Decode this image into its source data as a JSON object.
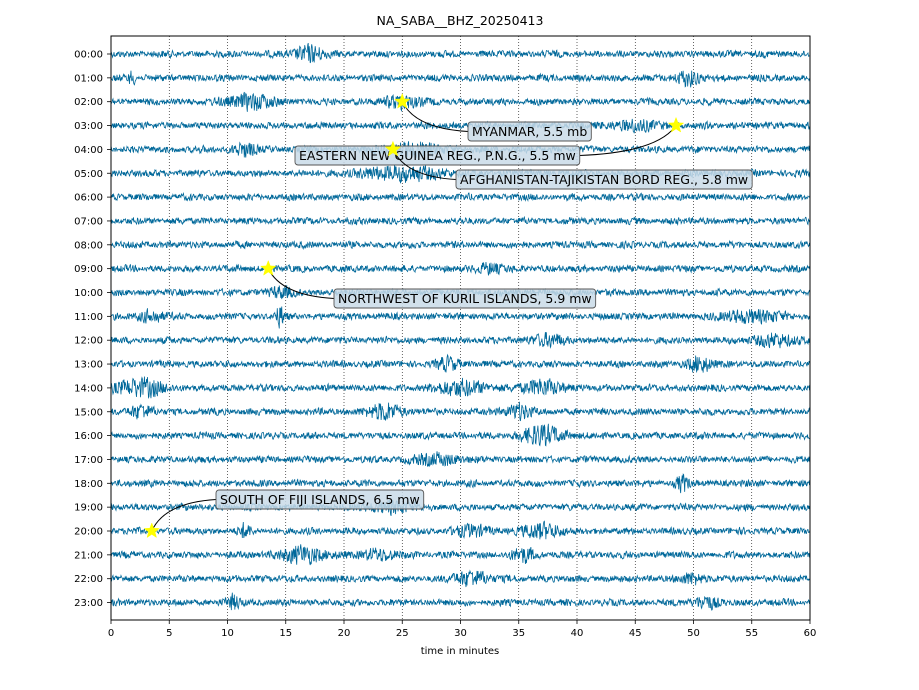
{
  "chart_data": {
    "type": "line",
    "title": "NA_SABA__BHZ_20250413",
    "xlabel": "time in minutes",
    "ylabel": "",
    "xlim": [
      0,
      60
    ],
    "xticks": [
      0,
      5,
      10,
      15,
      20,
      25,
      30,
      35,
      40,
      45,
      50,
      55,
      60
    ],
    "rows": [
      "00:00",
      "01:00",
      "02:00",
      "03:00",
      "04:00",
      "05:00",
      "06:00",
      "07:00",
      "08:00",
      "09:00",
      "10:00",
      "11:00",
      "12:00",
      "13:00",
      "14:00",
      "15:00",
      "16:00",
      "17:00",
      "18:00",
      "19:00",
      "20:00",
      "21:00",
      "22:00",
      "23:00"
    ],
    "grid": "vertical-dotted",
    "trace_color": "#00689a",
    "marker_color": "#ffff00",
    "events": [
      {
        "label": "MYANMAR, 5.5 mb",
        "row": 2,
        "minute": 25.0
      },
      {
        "label": "EASTERN NEW GUINEA REG., P.N.G., 5.5 mw",
        "row": 3,
        "minute": 48.5
      },
      {
        "label": "AFGHANISTAN-TAJIKISTAN BORD REG., 5.8 mw",
        "row": 4,
        "minute": 24.2
      },
      {
        "label": "NORTHWEST OF KURIL ISLANDS, 5.9 mw",
        "row": 9,
        "minute": 13.5
      },
      {
        "label": "SOUTH OF FIJI ISLANDS, 6.5 mw",
        "row": 20,
        "minute": 3.5
      }
    ],
    "bursts": [
      [
        {
          "m": 17,
          "a": 1.6,
          "w": 1.2
        }
      ],
      [
        {
          "m": 1.8,
          "a": 1.3,
          "w": 0.3
        },
        {
          "m": 49.5,
          "a": 1.4,
          "w": 1.0
        }
      ],
      [
        {
          "m": 12,
          "a": 1.4,
          "w": 2.0
        },
        {
          "m": 25,
          "a": 1.2,
          "w": 1.5
        }
      ],
      [
        {
          "m": 45,
          "a": 0.9,
          "w": 2.0
        }
      ],
      [
        {
          "m": 11.5,
          "a": 1.2,
          "w": 1.0
        },
        {
          "m": 26,
          "a": 1.2,
          "w": 2.5
        }
      ],
      [
        {
          "m": 25,
          "a": 1.3,
          "w": 3.5
        }
      ],
      [],
      [],
      [],
      [
        {
          "m": 32.5,
          "a": 1.0,
          "w": 1.0
        }
      ],
      [
        {
          "m": 14.5,
          "a": 1.0,
          "w": 1.0
        }
      ],
      [
        {
          "m": 14.5,
          "a": 1.8,
          "w": 0.4
        },
        {
          "m": 3.5,
          "a": 1.1,
          "w": 1.0
        },
        {
          "m": 55,
          "a": 1.1,
          "w": 2.5
        }
      ],
      [
        {
          "m": 37.5,
          "a": 1.0,
          "w": 1.5
        },
        {
          "m": 57,
          "a": 1.0,
          "w": 2.0
        }
      ],
      [
        {
          "m": 29,
          "a": 1.1,
          "w": 1.0
        },
        {
          "m": 50.5,
          "a": 1.5,
          "w": 1.0
        }
      ],
      [
        {
          "m": 2.5,
          "a": 1.7,
          "w": 2.0
        },
        {
          "m": 30,
          "a": 1.5,
          "w": 2.0
        },
        {
          "m": 37,
          "a": 1.3,
          "w": 2.0
        }
      ],
      [
        {
          "m": 23.5,
          "a": 1.5,
          "w": 1.5
        },
        {
          "m": 35,
          "a": 1.5,
          "w": 1.0
        },
        {
          "m": 2.5,
          "a": 1.2,
          "w": 1.0
        }
      ],
      [
        {
          "m": 37,
          "a": 1.8,
          "w": 1.8
        }
      ],
      [
        {
          "m": 28,
          "a": 1.0,
          "w": 2.0
        }
      ],
      [
        {
          "m": 49,
          "a": 1.5,
          "w": 0.5
        }
      ],
      [
        {
          "m": 24,
          "a": 1.0,
          "w": 2.0
        }
      ],
      [
        {
          "m": 37,
          "a": 1.5,
          "w": 1.5
        },
        {
          "m": 11.5,
          "a": 1.2,
          "w": 0.5
        },
        {
          "m": 31,
          "a": 1.0,
          "w": 1.5
        }
      ],
      [
        {
          "m": 16.5,
          "a": 1.5,
          "w": 2.0
        },
        {
          "m": 35.5,
          "a": 1.3,
          "w": 1.0
        },
        {
          "m": 23,
          "a": 1.0,
          "w": 1.5
        }
      ],
      [
        {
          "m": 31,
          "a": 1.4,
          "w": 1.5
        },
        {
          "m": 50,
          "a": 1.0,
          "w": 1.0
        }
      ],
      [
        {
          "m": 10.5,
          "a": 1.3,
          "w": 0.6
        },
        {
          "m": 51,
          "a": 1.2,
          "w": 1.0
        }
      ]
    ]
  }
}
